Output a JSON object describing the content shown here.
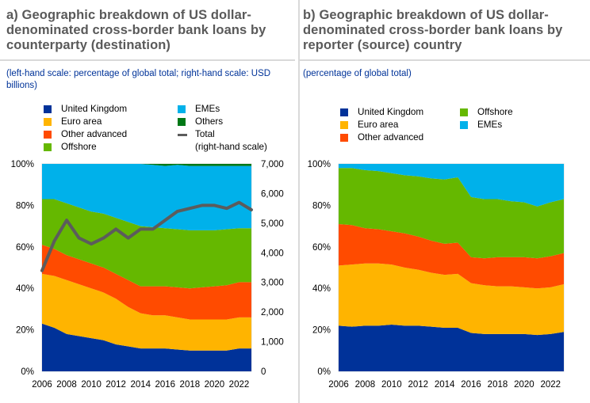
{
  "colors": {
    "uk": "#003299",
    "euro": "#ffb400",
    "other_adv": "#ff4b00",
    "offshore": "#65b800",
    "emes": "#00b1ea",
    "others": "#007816",
    "total": "#5c5c5c"
  },
  "panels": {
    "a": {
      "title": "a) Geographic breakdown of US dollar-denominated cross-border bank loans by counterparty (destination)",
      "subtitle": "(left-hand scale: percentage of global total; right-hand scale: USD billions)",
      "legend": [
        {
          "key": "uk",
          "label": "United Kingdom"
        },
        {
          "key": "euro",
          "label": "Euro area"
        },
        {
          "key": "other_adv",
          "label": "Other advanced"
        },
        {
          "key": "offshore",
          "label": "Offshore"
        },
        {
          "key": "emes",
          "label": "EMEs"
        },
        {
          "key": "others",
          "label": "Others"
        },
        {
          "key": "total",
          "label": "Total",
          "label2": "(right-hand scale)"
        }
      ]
    },
    "b": {
      "title": "b) Geographic breakdown of US dollar-denominated cross-border bank loans by reporter (source) country",
      "subtitle": "(percentage of global total)",
      "legend": [
        {
          "key": "uk",
          "label": "United Kingdom"
        },
        {
          "key": "euro",
          "label": "Euro area"
        },
        {
          "key": "other_adv",
          "label": "Other advanced"
        },
        {
          "key": "offshore",
          "label": "Offshore"
        },
        {
          "key": "emes",
          "label": "EMEs"
        }
      ]
    }
  },
  "chart_data": [
    {
      "type": "area",
      "stacked": true,
      "title": "a) Geographic breakdown of US dollar-denominated cross-border bank loans by counterparty (destination)",
      "x": [
        2006,
        2007,
        2008,
        2009,
        2010,
        2011,
        2012,
        2013,
        2014,
        2015,
        2016,
        2017,
        2018,
        2019,
        2020,
        2021,
        2022,
        2023
      ],
      "x_ticks": [
        "2006",
        "2008",
        "2010",
        "2012",
        "2014",
        "2016",
        "2018",
        "2020",
        "2022"
      ],
      "y_ticks_left": [
        "0%",
        "20%",
        "40%",
        "60%",
        "80%",
        "100%"
      ],
      "y_ticks_right": [
        "0",
        "1,000",
        "2,000",
        "3,000",
        "4,000",
        "5,000",
        "6,000",
        "7,000"
      ],
      "ylim_left": [
        0,
        100
      ],
      "ylim_right": [
        0,
        7000
      ],
      "series": [
        {
          "name": "United Kingdom",
          "key": "uk",
          "values": [
            23,
            21,
            18,
            17,
            16,
            15,
            13,
            12,
            11,
            11,
            11,
            10.5,
            10,
            10,
            10,
            10,
            11,
            11
          ]
        },
        {
          "name": "Euro area",
          "key": "euro",
          "values": [
            24,
            25,
            26,
            25,
            24,
            23,
            22,
            19,
            17,
            16,
            16,
            15.5,
            15,
            15,
            15,
            15,
            15,
            15
          ]
        },
        {
          "name": "Other advanced",
          "key": "other_adv",
          "values": [
            14,
            13,
            12,
            12,
            12,
            12,
            12,
            13,
            13,
            14,
            14,
            14.5,
            15,
            15.5,
            16,
            16.5,
            17,
            17
          ]
        },
        {
          "name": "Offshore",
          "key": "offshore",
          "values": [
            22,
            24,
            25,
            25,
            25,
            26,
            27,
            28,
            29,
            28.5,
            28,
            28,
            28,
            27.5,
            27,
            27,
            26,
            26
          ]
        },
        {
          "name": "EMEs",
          "key": "emes",
          "values": [
            17,
            17,
            19,
            21,
            23,
            24,
            26,
            28,
            30,
            30,
            30,
            31,
            31,
            31,
            31,
            30.5,
            30,
            30
          ]
        },
        {
          "name": "Others",
          "key": "others",
          "values": [
            0,
            0,
            0,
            0,
            0,
            0,
            0,
            0,
            0,
            0.5,
            1,
            0.5,
            1,
            1,
            1,
            1,
            1,
            1
          ]
        }
      ],
      "line_series": {
        "name": "Total (right-hand scale)",
        "key": "total",
        "axis": "right",
        "values": [
          3400,
          4400,
          5100,
          4500,
          4300,
          4500,
          4800,
          4500,
          4800,
          4800,
          5100,
          5400,
          5500,
          5600,
          5600,
          5500,
          5700,
          5450
        ]
      }
    },
    {
      "type": "area",
      "stacked": true,
      "title": "b) Geographic breakdown of US dollar-denominated cross-border bank loans by reporter (source) country",
      "x": [
        2006,
        2007,
        2008,
        2009,
        2010,
        2011,
        2012,
        2013,
        2014,
        2015,
        2016,
        2017,
        2018,
        2019,
        2020,
        2021,
        2022,
        2023
      ],
      "x_ticks": [
        "2006",
        "2008",
        "2010",
        "2012",
        "2014",
        "2016",
        "2018",
        "2020",
        "2022"
      ],
      "y_ticks_left": [
        "0%",
        "20%",
        "40%",
        "60%",
        "80%",
        "100%"
      ],
      "ylim_left": [
        0,
        100
      ],
      "series": [
        {
          "name": "United Kingdom",
          "key": "uk",
          "values": [
            22,
            21.5,
            22,
            22,
            22.5,
            22,
            22,
            21.5,
            21,
            21,
            18.5,
            18,
            18,
            18,
            18,
            17.5,
            18,
            19
          ]
        },
        {
          "name": "Euro area",
          "key": "euro",
          "values": [
            29,
            30,
            30,
            30,
            29,
            28,
            27,
            26,
            25.5,
            26,
            24,
            23.5,
            23,
            23,
            22.5,
            22.5,
            22.5,
            23
          ]
        },
        {
          "name": "Other advanced",
          "key": "other_adv",
          "values": [
            20,
            19,
            17,
            16.5,
            16,
            16.5,
            16,
            15.5,
            15,
            15,
            12.5,
            13,
            14,
            14,
            14.5,
            14.5,
            15,
            15
          ]
        },
        {
          "name": "Offshore",
          "key": "offshore",
          "values": [
            27,
            27.5,
            28,
            28,
            28,
            28,
            29,
            30,
            31,
            31.5,
            29,
            28.5,
            28,
            27,
            26.5,
            25,
            26,
            26
          ]
        },
        {
          "name": "EMEs",
          "key": "emes",
          "values": [
            2,
            2,
            3,
            3.5,
            4.5,
            5.5,
            6,
            7,
            7.5,
            6.5,
            16,
            17,
            17,
            18,
            18.5,
            20.5,
            18.5,
            17
          ]
        }
      ]
    }
  ]
}
